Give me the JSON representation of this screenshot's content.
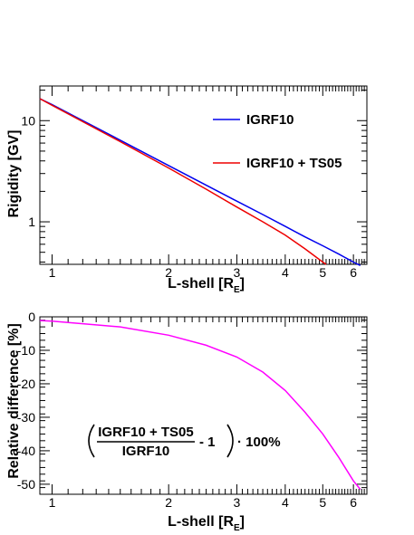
{
  "chart_data": [
    {
      "type": "line",
      "xlabel": "L-shell [R",
      "xlabel_sub": "E",
      "xlabel_close": "]",
      "ylabel": "Rigidity [GV]",
      "x_scale": "log",
      "y_scale": "log",
      "xlim": [
        0.93,
        6.5
      ],
      "ylim": [
        0.38,
        22
      ],
      "x_ticks": [
        1,
        2,
        3,
        4,
        5,
        6
      ],
      "x_tick_labels": [
        "1",
        "2",
        "3",
        "4",
        "5",
        "6"
      ],
      "y_ticks": [
        1,
        10
      ],
      "y_tick_labels": [
        "1",
        "10"
      ],
      "legend_position": "upper-right",
      "series": [
        {
          "name": "IGRF10",
          "color": "#0000ee",
          "x": [
            0.93,
            1.0,
            1.5,
            2.0,
            2.5,
            3.0,
            3.5,
            4.0,
            4.5,
            5.0,
            5.5,
            6.0,
            6.25
          ],
          "y": [
            16.5,
            14.4,
            6.4,
            3.6,
            2.3,
            1.6,
            1.18,
            0.9,
            0.71,
            0.58,
            0.48,
            0.4,
            0.37
          ]
        },
        {
          "name": "IGRF10 + TS05",
          "color": "#ee0000",
          "x": [
            0.93,
            1.0,
            1.5,
            2.0,
            2.5,
            3.0,
            3.5,
            4.0,
            4.5,
            5.0,
            5.1
          ],
          "y": [
            16.5,
            14.2,
            6.2,
            3.4,
            2.1,
            1.4,
            1.0,
            0.74,
            0.54,
            0.4,
            0.38
          ]
        }
      ]
    },
    {
      "type": "line",
      "xlabel": "L-shell [R",
      "xlabel_sub": "E",
      "xlabel_close": "]",
      "ylabel": "Relative difference [%]",
      "x_scale": "log",
      "y_scale": "linear",
      "xlim": [
        0.93,
        6.5
      ],
      "ylim": [
        -53,
        0
      ],
      "x_ticks": [
        1,
        2,
        3,
        4,
        5,
        6
      ],
      "x_tick_labels": [
        "1",
        "2",
        "3",
        "4",
        "5",
        "6"
      ],
      "y_ticks": [
        0,
        -10,
        -20,
        -30,
        -40,
        -50
      ],
      "y_tick_labels": [
        "0",
        "-10",
        "-20",
        "-30",
        "-40",
        "-50"
      ],
      "annotation": {
        "numerator": "IGRF10 + TS05",
        "denominator": "IGRF10",
        "minus_one": "- 1",
        "factor": "· 100%"
      },
      "series": [
        {
          "color": "#ff00ff",
          "x": [
            0.93,
            1.0,
            1.5,
            2.0,
            2.5,
            3.0,
            3.5,
            4.0,
            4.5,
            5.0,
            5.5,
            6.0,
            6.25
          ],
          "y": [
            -1.1,
            -1.3,
            -3.0,
            -5.5,
            -8.5,
            -12.0,
            -16.5,
            -22.0,
            -28.5,
            -35.0,
            -42.0,
            -49.0,
            -51.5
          ]
        }
      ]
    }
  ]
}
